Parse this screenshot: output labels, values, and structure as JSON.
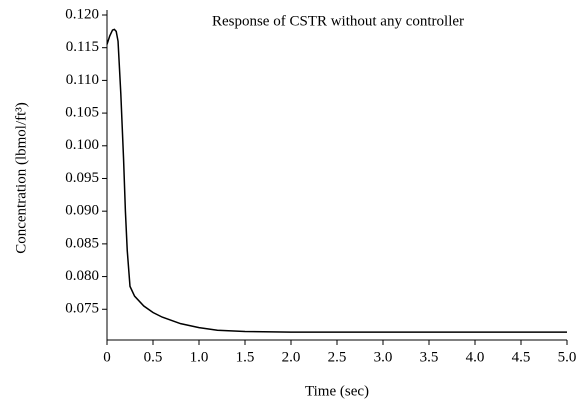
{
  "chart_data": {
    "type": "line",
    "title": "Response of CSTR without any controller",
    "x_label": "Time (sec)",
    "y_label": "Concentration (lbmol/ft³)",
    "x": [
      0,
      0.03,
      0.06,
      0.08,
      0.1,
      0.12,
      0.15,
      0.18,
      0.2,
      0.22,
      0.25,
      0.3,
      0.4,
      0.5,
      0.6,
      0.8,
      1.0,
      1.2,
      1.5,
      2.0,
      3.0,
      4.0,
      5.0
    ],
    "series": [
      {
        "color": "#000000",
        "values": [
          0.1155,
          0.1168,
          0.1177,
          0.1178,
          0.1175,
          0.116,
          0.108,
          0.098,
          0.09,
          0.084,
          0.0785,
          0.077,
          0.0755,
          0.0745,
          0.0738,
          0.0728,
          0.0722,
          0.0718,
          0.0716,
          0.0715,
          0.0715,
          0.0715,
          0.0715
        ]
      }
    ],
    "xlim": [
      0,
      5
    ],
    "xticks": [
      0,
      0.5,
      {
        "value": 1,
        "label": "1.0"
      },
      1.5,
      {
        "value": 2,
        "label": "2.0"
      },
      2.5,
      {
        "value": 3,
        "label": "3.0"
      },
      3.5,
      {
        "value": 4,
        "label": "4.0"
      },
      4.5,
      {
        "value": 5,
        "label": "5.0"
      }
    ],
    "ylim": [
      0.0703,
      0.12
    ],
    "yticks": [
      {
        "value": 0.075,
        "label": "0.075"
      },
      {
        "value": 0.08,
        "label": "0.080"
      },
      {
        "value": 0.085,
        "label": "0.085"
      },
      {
        "value": 0.09,
        "label": "0.090"
      },
      {
        "value": 0.095,
        "label": "0.095"
      },
      {
        "value": 0.1,
        "label": "0.100"
      },
      {
        "value": 0.105,
        "label": "0.105"
      },
      {
        "value": 0.11,
        "label": "0.110"
      },
      {
        "value": 0.115,
        "label": "0.115"
      },
      {
        "value": 0.12,
        "label": "0.120"
      }
    ],
    "grid": false
  }
}
